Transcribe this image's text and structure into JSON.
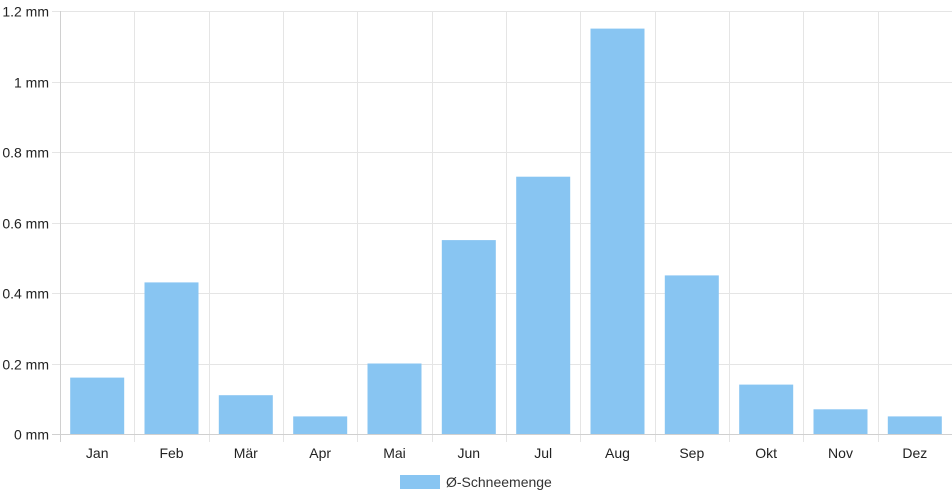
{
  "chart_data": {
    "type": "bar",
    "title": "",
    "xlabel": "",
    "ylabel": "",
    "categories": [
      "Jan",
      "Feb",
      "Mär",
      "Apr",
      "Mai",
      "Jun",
      "Jul",
      "Aug",
      "Sep",
      "Okt",
      "Nov",
      "Dez"
    ],
    "series": [
      {
        "name": "Ø-Schneemenge",
        "values": [
          0.16,
          0.43,
          0.11,
          0.05,
          0.2,
          0.55,
          0.73,
          1.15,
          0.45,
          0.14,
          0.07,
          0.05
        ],
        "color": "#88c5f2"
      }
    ],
    "ylim": [
      0,
      1.2
    ],
    "y_ticks": [
      0,
      0.2,
      0.4,
      0.6,
      0.8,
      1.0,
      1.2
    ],
    "y_tick_labels": [
      "0 mm",
      "0.2 mm",
      "0.4 mm",
      "0.6 mm",
      "0.8 mm",
      "1 mm",
      "1.2 mm"
    ],
    "grid": true,
    "legend_position": "bottom-center"
  }
}
